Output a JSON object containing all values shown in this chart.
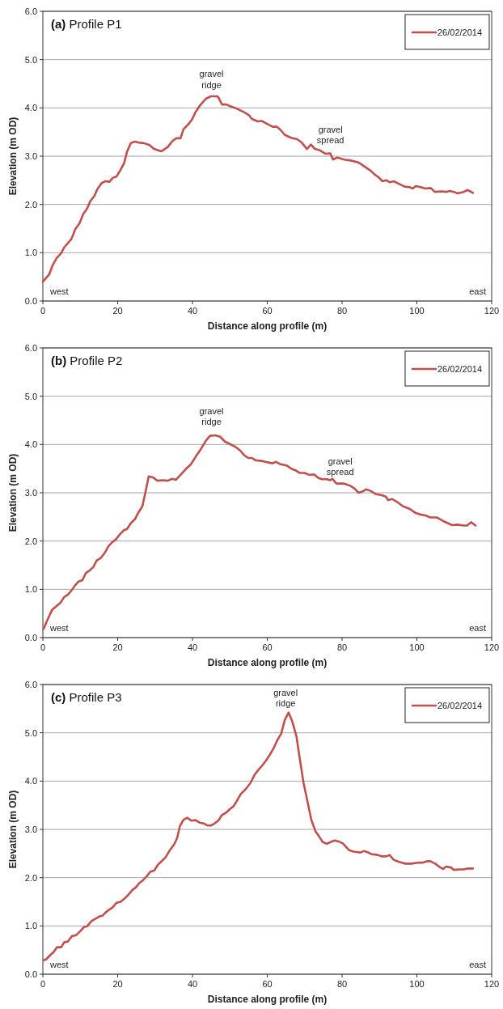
{
  "chart_data": [
    {
      "type": "line",
      "title": "(a) Profile P1",
      "xlabel": "Distance along profile (m)",
      "ylabel": "Elevation (m OD)",
      "xlim": [
        0,
        120
      ],
      "xticks": [
        0,
        20,
        40,
        60,
        80,
        100,
        120
      ],
      "ylim": [
        0,
        6
      ],
      "yticks": [
        {
          "value": 0,
          "label": "0.0"
        },
        {
          "value": 1,
          "label": "1.0"
        },
        {
          "value": 2,
          "label": "2.0"
        },
        {
          "value": 3,
          "label": "3.0"
        },
        {
          "value": 4,
          "label": "4.0"
        },
        {
          "value": 5,
          "label": "5.0"
        },
        {
          "value": 6,
          "label": "6.0"
        }
      ],
      "grid": "y",
      "legend": "top right",
      "annotations": [
        "gravel ridge",
        "gravel spread",
        "west",
        "east"
      ],
      "series": [
        {
          "name": "26/02/2014",
          "color": "#c0504d",
          "x": [
            0,
            1.7,
            2.6,
            3.7,
            4.9,
            5.7,
            7.6,
            8.7,
            9.8,
            10.8,
            11.8,
            12.7,
            13.8,
            14.6,
            15.7,
            16.6,
            17.8,
            18.7,
            19.7,
            20.8,
            21.7,
            22.5,
            23.5,
            24.6,
            25.7,
            27,
            28.5,
            29.7,
            31.7,
            33.4,
            34.6,
            35.6,
            36.8,
            37.6,
            38.9,
            39.9,
            40.8,
            41.9,
            43.6,
            44.9,
            46.6,
            47,
            47.9,
            49,
            50,
            51.7,
            53.8,
            55.1,
            55.9,
            57.4,
            58.5,
            59.7,
            61.4,
            62.6,
            63.6,
            64.7,
            66.7,
            67.8,
            69.1,
            70.6,
            71.7,
            72.7,
            73.8,
            75.6,
            76.8,
            77.6,
            78.7,
            79.7,
            80.6,
            82.3,
            84.4,
            85.7,
            87.6,
            88.7,
            89.8,
            90.8,
            91.8,
            92.7,
            93.8,
            95.4,
            96.7,
            98,
            98.9,
            99.7,
            101,
            102.3,
            103.7,
            104.8,
            106.5,
            107.8,
            108.8,
            109.9,
            110.9,
            112.5,
            113.6,
            115
          ],
          "values": [
            0.4,
            0.55,
            0.74,
            0.89,
            0.99,
            1.11,
            1.28,
            1.49,
            1.61,
            1.8,
            1.91,
            2.07,
            2.18,
            2.32,
            2.44,
            2.48,
            2.47,
            2.55,
            2.58,
            2.72,
            2.85,
            3.09,
            3.27,
            3.3,
            3.28,
            3.27,
            3.23,
            3.15,
            3.1,
            3.19,
            3.31,
            3.37,
            3.37,
            3.56,
            3.66,
            3.76,
            3.91,
            4.04,
            4.19,
            4.24,
            4.24,
            4.21,
            4.07,
            4.07,
            4.04,
            3.99,
            3.91,
            3.85,
            3.77,
            3.72,
            3.73,
            3.68,
            3.61,
            3.61,
            3.54,
            3.44,
            3.37,
            3.36,
            3.29,
            3.15,
            3.24,
            3.15,
            3.13,
            3.05,
            3.06,
            2.93,
            2.97,
            2.95,
            2.93,
            2.91,
            2.87,
            2.8,
            2.7,
            2.62,
            2.56,
            2.48,
            2.5,
            2.46,
            2.48,
            2.42,
            2.37,
            2.36,
            2.33,
            2.38,
            2.36,
            2.33,
            2.34,
            2.26,
            2.27,
            2.26,
            2.28,
            2.26,
            2.23,
            2.26,
            2.3,
            2.24
          ]
        }
      ]
    },
    {
      "type": "line",
      "title": "(b) Profile P2",
      "xlabel": "Distance along profile (m)",
      "ylabel": "Elevation (m OD)",
      "xlim": [
        0,
        120
      ],
      "xticks": [
        0,
        20,
        40,
        60,
        80,
        100,
        120
      ],
      "ylim": [
        0,
        6
      ],
      "yticks": [
        {
          "value": 0,
          "label": "0.0"
        },
        {
          "value": 1,
          "label": "1.0"
        },
        {
          "value": 2,
          "label": "2.0"
        },
        {
          "value": 3,
          "label": "3.0"
        },
        {
          "value": 4,
          "label": "4.0"
        },
        {
          "value": 5,
          "label": "5.0"
        },
        {
          "value": 6,
          "label": "6.0"
        }
      ],
      "grid": "y",
      "legend": "top right",
      "annotations": [
        "gravel ridge",
        "gravel spread",
        "west",
        "east"
      ],
      "series": [
        {
          "name": "26/02/2014",
          "color": "#c0504d",
          "x": [
            0.2,
            1.3,
            2.5,
            3.6,
            4.7,
            5.7,
            6.7,
            7.6,
            8.5,
            9.5,
            10.6,
            11.5,
            12.5,
            13.5,
            14.4,
            15.5,
            16.6,
            17.6,
            18.6,
            19.5,
            20.6,
            21.6,
            22.5,
            23.6,
            24.6,
            25.4,
            26.6,
            27.4,
            28.3,
            29.4,
            30.6,
            32.1,
            33.4,
            34.6,
            35.6,
            36.8,
            38.2,
            39.6,
            40.8,
            42.3,
            43.6,
            44.7,
            46.1,
            47.4,
            48.7,
            50,
            51.7,
            52.7,
            53.8,
            54.9,
            55.9,
            57,
            58.5,
            59.5,
            61.4,
            62.3,
            63.6,
            65.3,
            66.6,
            67.7,
            68.7,
            70,
            71.2,
            72.5,
            73.6,
            74.6,
            75.9,
            76.8,
            77.4,
            78.5,
            79.7,
            80.6,
            82.3,
            83.3,
            84.4,
            85.3,
            86.4,
            87.6,
            89.1,
            90.6,
            91.7,
            92.3,
            93.4,
            94.9,
            96.3,
            98,
            99.7,
            100.9,
            102.3,
            103.6,
            105.3,
            107.4,
            109.4,
            110.8,
            112.5,
            113.4,
            114.5,
            115.7
          ],
          "values": [
            0.18,
            0.38,
            0.58,
            0.65,
            0.72,
            0.84,
            0.89,
            0.97,
            1.07,
            1.16,
            1.19,
            1.34,
            1.39,
            1.46,
            1.6,
            1.65,
            1.76,
            1.9,
            1.98,
            2.03,
            2.14,
            2.22,
            2.25,
            2.38,
            2.45,
            2.57,
            2.72,
            3.0,
            3.34,
            3.32,
            3.25,
            3.26,
            3.25,
            3.29,
            3.27,
            3.37,
            3.49,
            3.59,
            3.74,
            3.91,
            4.08,
            4.18,
            4.19,
            4.16,
            4.06,
            4.01,
            3.94,
            3.88,
            3.78,
            3.72,
            3.72,
            3.67,
            3.66,
            3.64,
            3.61,
            3.64,
            3.59,
            3.56,
            3.49,
            3.46,
            3.41,
            3.41,
            3.37,
            3.38,
            3.31,
            3.28,
            3.28,
            3.26,
            3.29,
            3.19,
            3.19,
            3.19,
            3.14,
            3.09,
            3.0,
            3.02,
            3.07,
            3.04,
            2.97,
            2.95,
            2.92,
            2.85,
            2.87,
            2.8,
            2.72,
            2.67,
            2.58,
            2.55,
            2.53,
            2.49,
            2.49,
            2.4,
            2.33,
            2.34,
            2.32,
            2.32,
            2.39,
            2.32
          ]
        }
      ]
    },
    {
      "type": "line",
      "title": "(c) Profile P3",
      "xlabel": "Distance along profile (m)",
      "ylabel": "Elevation (m OD)",
      "xlim": [
        0,
        120
      ],
      "xticks": [
        0,
        20,
        40,
        60,
        80,
        100,
        120
      ],
      "ylim": [
        0,
        6
      ],
      "yticks": [
        {
          "value": 0,
          "label": "0.0"
        },
        {
          "value": 1,
          "label": "1.0"
        },
        {
          "value": 2,
          "label": "2.0"
        },
        {
          "value": 3,
          "label": "3.0"
        },
        {
          "value": 4,
          "label": "4.0"
        },
        {
          "value": 5,
          "label": "5.0"
        },
        {
          "value": 6,
          "label": "6.0"
        }
      ],
      "grid": "y",
      "legend": "top right",
      "annotations": [
        "gravel ridge",
        "west",
        "east"
      ],
      "series": [
        {
          "name": "26/02/2014",
          "color": "#c0504d",
          "x": [
            0.2,
            0.9,
            1.9,
            2.9,
            3.8,
            4.9,
            5.7,
            6.7,
            7.8,
            8.9,
            10,
            11,
            11.8,
            13,
            14.1,
            15.2,
            15.9,
            16.8,
            17.6,
            18.6,
            19.7,
            20.8,
            21.9,
            22.9,
            24,
            24.9,
            25.7,
            26.8,
            27.8,
            28.7,
            29.8,
            30.8,
            31.9,
            32.8,
            33.8,
            35.1,
            35.9,
            36.6,
            37.6,
            38.6,
            39.7,
            40.8,
            41.9,
            43.1,
            44,
            44.9,
            45.9,
            47,
            47.8,
            48.9,
            50,
            51,
            51.8,
            52.9,
            54.2,
            55.5,
            56.6,
            57.6,
            58.6,
            59.7,
            60.8,
            61.7,
            62.7,
            63.7,
            64.7,
            65.7,
            66.7,
            67.8,
            68.7,
            69.7,
            70.8,
            71.8,
            72.9,
            73.8,
            74.8,
            75.9,
            77,
            78,
            79.1,
            80.2,
            81,
            81.9,
            83.1,
            84.9,
            85.7,
            86.7,
            87.8,
            89.5,
            90.8,
            91.8,
            92.7,
            93.8,
            95.1,
            96.8,
            98.5,
            100.2,
            101.4,
            102.7,
            103.6,
            104.9,
            106.1,
            107,
            107.8,
            109.1,
            109.9,
            111.2,
            112.5,
            113.6,
            115
          ],
          "values": [
            0.29,
            0.31,
            0.39,
            0.46,
            0.56,
            0.56,
            0.66,
            0.68,
            0.79,
            0.81,
            0.89,
            0.98,
            0.99,
            1.1,
            1.15,
            1.2,
            1.21,
            1.28,
            1.33,
            1.38,
            1.48,
            1.5,
            1.57,
            1.65,
            1.75,
            1.8,
            1.88,
            1.95,
            2.03,
            2.12,
            2.15,
            2.27,
            2.35,
            2.42,
            2.55,
            2.69,
            2.82,
            3.06,
            3.2,
            3.24,
            3.18,
            3.19,
            3.14,
            3.12,
            3.08,
            3.08,
            3.12,
            3.19,
            3.29,
            3.34,
            3.42,
            3.48,
            3.58,
            3.73,
            3.83,
            3.96,
            4.13,
            4.23,
            4.32,
            4.43,
            4.56,
            4.68,
            4.85,
            4.98,
            5.27,
            5.42,
            5.23,
            4.93,
            4.46,
            3.96,
            3.56,
            3.19,
            2.96,
            2.86,
            2.74,
            2.7,
            2.74,
            2.77,
            2.75,
            2.71,
            2.64,
            2.57,
            2.54,
            2.52,
            2.55,
            2.53,
            2.49,
            2.47,
            2.44,
            2.44,
            2.47,
            2.37,
            2.33,
            2.29,
            2.29,
            2.31,
            2.31,
            2.34,
            2.34,
            2.29,
            2.22,
            2.18,
            2.23,
            2.21,
            2.16,
            2.17,
            2.17,
            2.19,
            2.19
          ]
        }
      ]
    }
  ]
}
